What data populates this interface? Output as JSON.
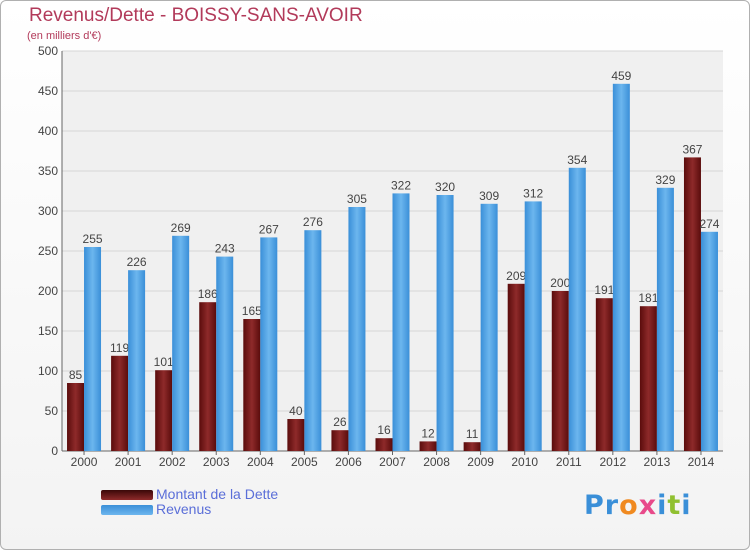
{
  "chart_data": {
    "type": "bar",
    "title": "Revenus/Dette - BOISSY-SANS-AVOIR",
    "subtitle": "(en milliers d'€)",
    "categories": [
      "2000",
      "2001",
      "2002",
      "2003",
      "2004",
      "2005",
      "2006",
      "2007",
      "2008",
      "2009",
      "2010",
      "2011",
      "2012",
      "2013",
      "2014"
    ],
    "series": [
      {
        "name": "Montant de la Dette",
        "color": "#7a1515",
        "values": [
          85,
          119,
          101,
          186,
          165,
          40,
          26,
          16,
          12,
          11,
          209,
          200,
          191,
          181,
          367
        ]
      },
      {
        "name": "Revenus",
        "color": "#4a9fe0",
        "values": [
          255,
          226,
          269,
          243,
          267,
          276,
          305,
          322,
          320,
          309,
          312,
          354,
          459,
          329,
          274
        ]
      }
    ],
    "ylim": [
      0,
      500
    ],
    "yticks": [
      0,
      50,
      100,
      150,
      200,
      250,
      300,
      350,
      400,
      450,
      500
    ],
    "grid": true,
    "legend_position": "bottom-left"
  },
  "logo": {
    "text": "Proxiti",
    "letters": [
      "P",
      "r",
      "o",
      "x",
      "i",
      "t",
      "i"
    ],
    "colors": [
      "#3a8fd8",
      "#3a8fd8",
      "#f08a20",
      "#e84a8a",
      "#3a8fd8",
      "#90c030",
      "#3a8fd8"
    ]
  }
}
